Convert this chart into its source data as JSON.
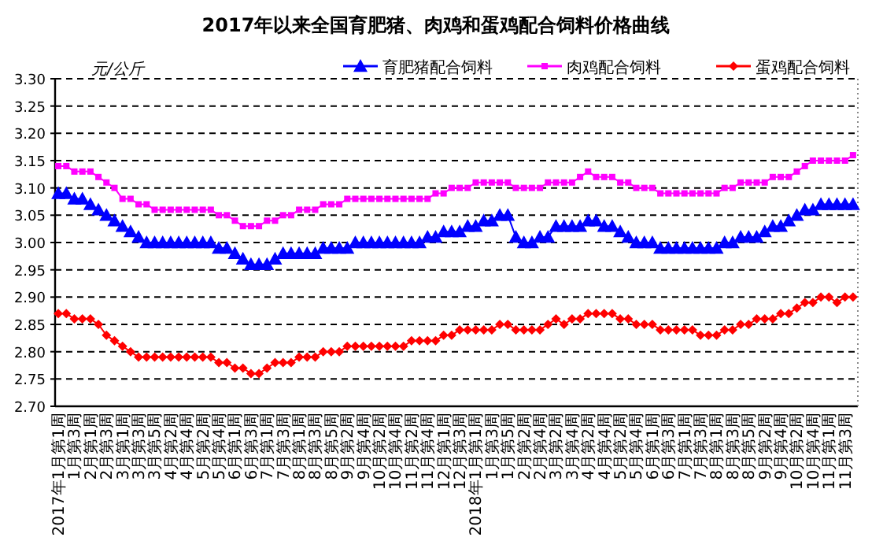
{
  "chart_data": {
    "type": "line",
    "title": "2017年以来全国育肥猪、肉鸡和蛋鸡配合饲料价格曲线",
    "ylabel": "元/公斤",
    "categories": [
      "2017年1月第1周",
      null,
      "1月第3周",
      null,
      "2月第1周",
      null,
      "2月第3周",
      null,
      "3月第1周",
      null,
      "3月第3周",
      null,
      "3月第5周",
      null,
      "4月第2周",
      null,
      "4月第4周",
      null,
      "5月第2周",
      null,
      "5月第4周",
      null,
      "6月第1周",
      null,
      "6月第3周",
      null,
      "7月第1周",
      null,
      "7月第3周",
      null,
      "8月第1周",
      null,
      "8月第3周",
      null,
      "8月第5周",
      null,
      "9月第2周",
      null,
      "9月第4周",
      null,
      "10月第2周",
      null,
      "10月第4周",
      null,
      "11月第2周",
      null,
      "11月第4周",
      null,
      "12月第1周",
      null,
      "12月第3周",
      null,
      "2018年1月第1周",
      null,
      "1月第3周",
      null,
      "1月第5周",
      null,
      "2月第2周",
      null,
      "2月第4周",
      null,
      "3月第2周",
      null,
      "3月第4周",
      null,
      "4月第2周",
      null,
      "4月第4周",
      null,
      "5月第2周",
      null,
      "5月第4周",
      null,
      "6月第1周",
      null,
      "6月第3周",
      null,
      "7月第1周",
      null,
      "7月第3周",
      null,
      "8月第1周",
      null,
      "8月第3周",
      null,
      "8月第5周",
      null,
      "9月第2周",
      null,
      "9月第4周",
      null,
      "10月第2周",
      null,
      "10月第4周",
      null,
      "11月第1周",
      null,
      "11月第3周",
      null
    ],
    "series": [
      {
        "name": "育肥猪配合饲料",
        "color": "#0000ff",
        "marker": "triangle",
        "values": [
          3.09,
          3.09,
          3.08,
          3.08,
          3.07,
          3.06,
          3.05,
          3.04,
          3.03,
          3.02,
          3.01,
          3.0,
          3.0,
          3.0,
          3.0,
          3.0,
          3.0,
          3.0,
          3.0,
          3.0,
          2.99,
          2.99,
          2.98,
          2.97,
          2.96,
          2.96,
          2.96,
          2.97,
          2.98,
          2.98,
          2.98,
          2.98,
          2.98,
          2.99,
          2.99,
          2.99,
          2.99,
          3.0,
          3.0,
          3.0,
          3.0,
          3.0,
          3.0,
          3.0,
          3.0,
          3.0,
          3.01,
          3.01,
          3.02,
          3.02,
          3.02,
          3.03,
          3.03,
          3.04,
          3.04,
          3.05,
          3.05,
          3.01,
          3.0,
          3.0,
          3.01,
          3.01,
          3.03,
          3.03,
          3.03,
          3.03,
          3.04,
          3.04,
          3.03,
          3.03,
          3.02,
          3.01,
          3.0,
          3.0,
          3.0,
          2.99,
          2.99,
          2.99,
          2.99,
          2.99,
          2.99,
          2.99,
          2.99,
          3.0,
          3.0,
          3.01,
          3.01,
          3.01,
          3.02,
          3.03,
          3.03,
          3.04,
          3.05,
          3.06,
          3.06,
          3.07,
          3.07,
          3.07,
          3.07,
          3.07
        ]
      },
      {
        "name": "肉鸡配合饲料",
        "color": "#ff00ff",
        "marker": "square",
        "values": [
          3.14,
          3.14,
          3.13,
          3.13,
          3.13,
          3.12,
          3.11,
          3.1,
          3.08,
          3.08,
          3.07,
          3.07,
          3.06,
          3.06,
          3.06,
          3.06,
          3.06,
          3.06,
          3.06,
          3.06,
          3.05,
          3.05,
          3.04,
          3.03,
          3.03,
          3.03,
          3.04,
          3.04,
          3.05,
          3.05,
          3.06,
          3.06,
          3.06,
          3.07,
          3.07,
          3.07,
          3.08,
          3.08,
          3.08,
          3.08,
          3.08,
          3.08,
          3.08,
          3.08,
          3.08,
          3.08,
          3.08,
          3.09,
          3.09,
          3.1,
          3.1,
          3.1,
          3.11,
          3.11,
          3.11,
          3.11,
          3.11,
          3.1,
          3.1,
          3.1,
          3.1,
          3.11,
          3.11,
          3.11,
          3.11,
          3.12,
          3.13,
          3.12,
          3.12,
          3.12,
          3.11,
          3.11,
          3.1,
          3.1,
          3.1,
          3.09,
          3.09,
          3.09,
          3.09,
          3.09,
          3.09,
          3.09,
          3.09,
          3.1,
          3.1,
          3.11,
          3.11,
          3.11,
          3.11,
          3.12,
          3.12,
          3.12,
          3.13,
          3.14,
          3.15,
          3.15,
          3.15,
          3.15,
          3.15,
          3.16
        ]
      },
      {
        "name": "蛋鸡配合饲料",
        "color": "#ff0000",
        "marker": "diamond",
        "values": [
          2.87,
          2.87,
          2.86,
          2.86,
          2.86,
          2.85,
          2.83,
          2.82,
          2.81,
          2.8,
          2.79,
          2.79,
          2.79,
          2.79,
          2.79,
          2.79,
          2.79,
          2.79,
          2.79,
          2.79,
          2.78,
          2.78,
          2.77,
          2.77,
          2.76,
          2.76,
          2.77,
          2.78,
          2.78,
          2.78,
          2.79,
          2.79,
          2.79,
          2.8,
          2.8,
          2.8,
          2.81,
          2.81,
          2.81,
          2.81,
          2.81,
          2.81,
          2.81,
          2.81,
          2.82,
          2.82,
          2.82,
          2.82,
          2.83,
          2.83,
          2.84,
          2.84,
          2.84,
          2.84,
          2.84,
          2.85,
          2.85,
          2.84,
          2.84,
          2.84,
          2.84,
          2.85,
          2.86,
          2.85,
          2.86,
          2.86,
          2.87,
          2.87,
          2.87,
          2.87,
          2.86,
          2.86,
          2.85,
          2.85,
          2.85,
          2.84,
          2.84,
          2.84,
          2.84,
          2.84,
          2.83,
          2.83,
          2.83,
          2.84,
          2.84,
          2.85,
          2.85,
          2.86,
          2.86,
          2.86,
          2.87,
          2.87,
          2.88,
          2.89,
          2.89,
          2.9,
          2.9,
          2.89,
          2.9,
          2.9
        ]
      }
    ],
    "ylim": [
      2.7,
      3.3
    ],
    "yticks": [
      {
        "value": 2.7,
        "label": "2.70"
      },
      {
        "value": 2.75,
        "label": "2.75"
      },
      {
        "value": 2.8,
        "label": "2.80"
      },
      {
        "value": 2.85,
        "label": "2.85"
      },
      {
        "value": 2.9,
        "label": "2.90"
      },
      {
        "value": 2.95,
        "label": "2.95"
      },
      {
        "value": 3.0,
        "label": "3.00"
      },
      {
        "value": 3.05,
        "label": "3.05"
      },
      {
        "value": 3.1,
        "label": "3.10"
      },
      {
        "value": 3.15,
        "label": "3.15"
      },
      {
        "value": 3.2,
        "label": "3.20"
      },
      {
        "value": 3.25,
        "label": "3.25"
      },
      {
        "value": 3.3,
        "label": "3.30"
      }
    ],
    "grid": "y",
    "legend": "top",
    "line_style": "solid"
  }
}
